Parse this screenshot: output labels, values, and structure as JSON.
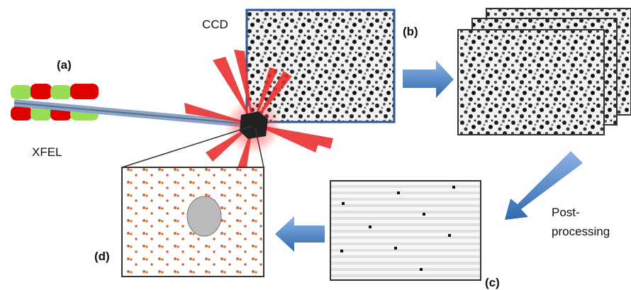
{
  "labels": {
    "a": "(a)",
    "xfel": "XFEL",
    "ccd": "CCD",
    "b": "(b)",
    "post_processing": [
      "Post-",
      "processing"
    ],
    "c": "(c)",
    "d": "(d)"
  }
}
